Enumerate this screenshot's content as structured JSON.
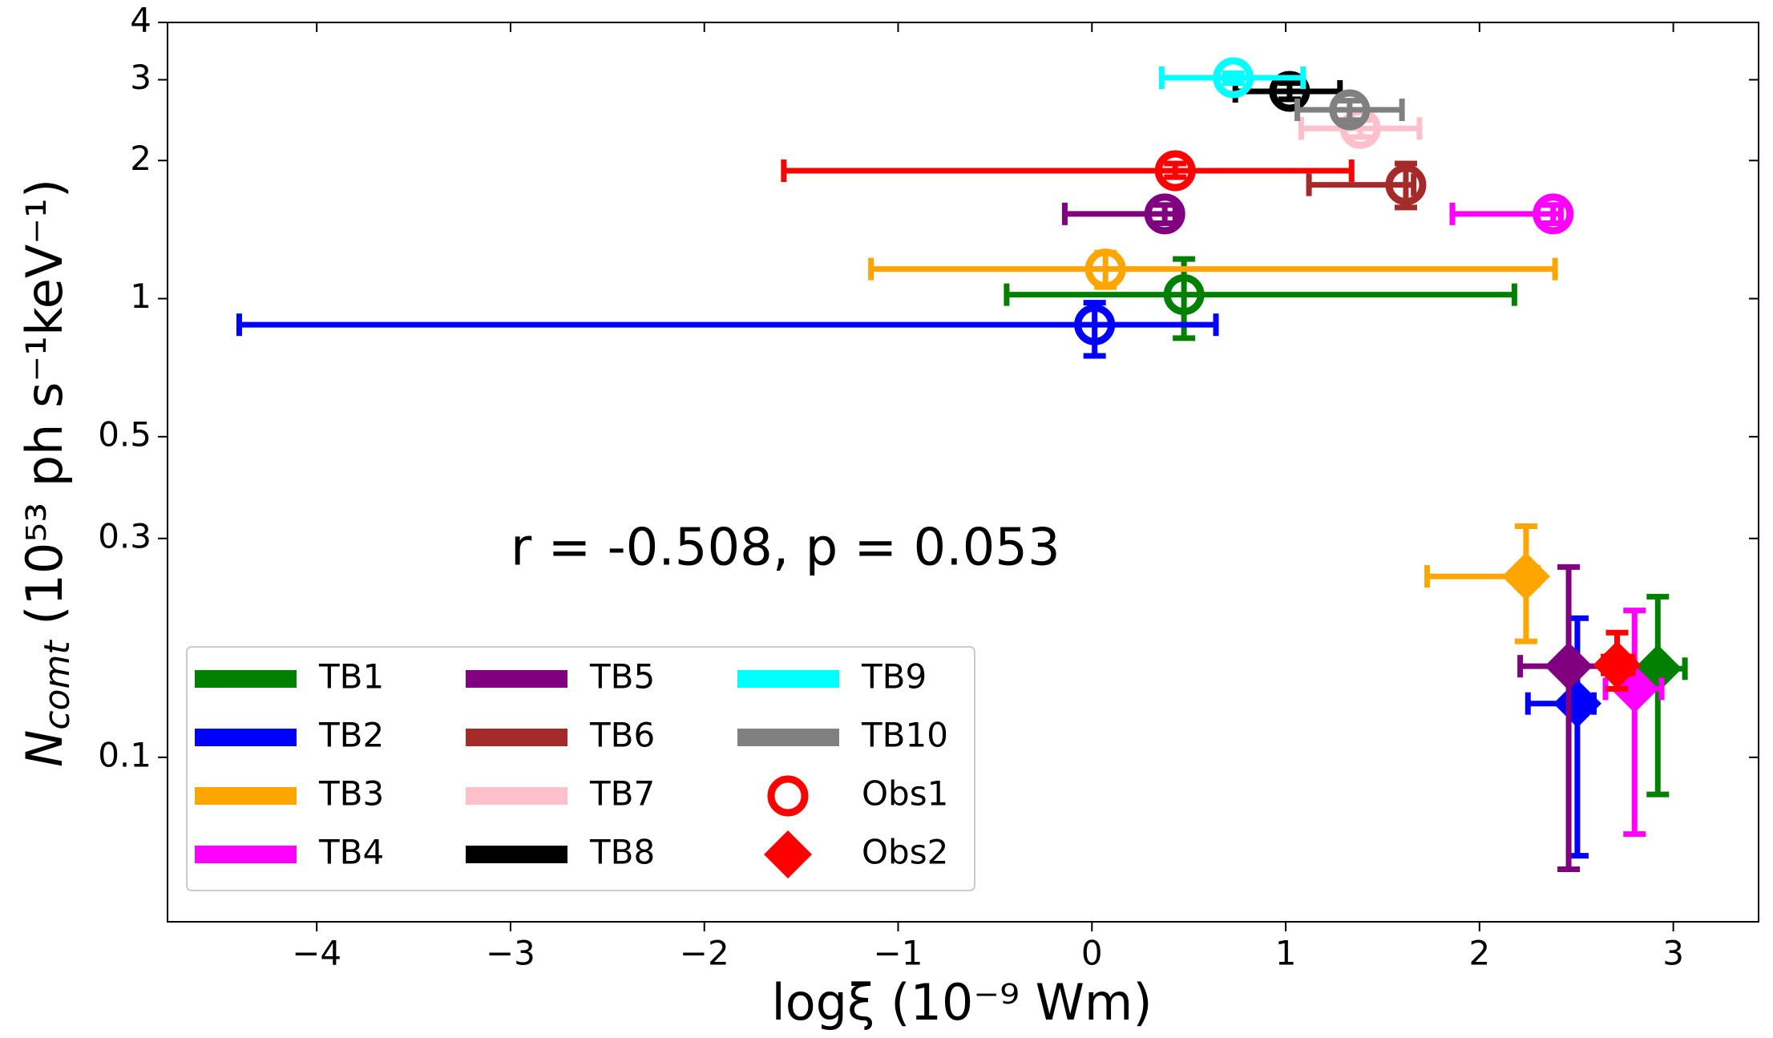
{
  "chart_data": {
    "type": "errorbar-scatter",
    "xlabel": "logξ (10⁻⁹ Wm)",
    "ylabel": {
      "main": "N",
      "sub": "comt",
      "rest": " (10⁵³ ph s⁻¹keV⁻¹)"
    },
    "annotation": {
      "text": "r = -0.508, p = 0.053",
      "color": "#ba55d3",
      "x": -3.0,
      "y": 0.282
    },
    "xlim": [
      -4.77,
      3.44
    ],
    "ylim": [
      0.0438,
      4
    ],
    "log_y": true,
    "xticks": [
      {
        "value": -4,
        "label": "−4"
      },
      {
        "value": -3,
        "label": "−3"
      },
      {
        "value": -2,
        "label": "−2"
      },
      {
        "value": -1,
        "label": "−1"
      },
      0,
      1,
      2,
      3
    ],
    "yticks": [
      0.1,
      0.3,
      0.5,
      1,
      2,
      3,
      4
    ],
    "legend": "lower left",
    "markers": [
      "circle",
      "diamond"
    ],
    "marker_labels": [
      "Obs1",
      "Obs2"
    ],
    "marker_color": "#ff0000",
    "series": [
      {
        "name": "TB1",
        "color": "#008000",
        "x": [
          0.475,
          2.92
        ],
        "y": [
          1.02,
          0.156
        ],
        "x_low": [
          -0.44,
          2.77
        ],
        "x_high": [
          2.18,
          3.06
        ],
        "y_low": [
          0.82,
          0.083
        ],
        "y_high": [
          1.22,
          0.224
        ]
      },
      {
        "name": "TB2",
        "color": "#0000ff",
        "x": [
          0.014,
          2.505
        ],
        "y": [
          0.877,
          0.131
        ],
        "x_low": [
          -4.4,
          2.25
        ],
        "x_high": [
          0.64,
          2.59
        ],
        "y_low": [
          0.75,
          0.061
        ],
        "y_high": [
          0.98,
          0.201
        ]
      },
      {
        "name": "TB3",
        "color": "#ffa500",
        "x": [
          0.07,
          2.24
        ],
        "y": [
          1.16,
          0.248
        ],
        "x_low": [
          -1.14,
          1.73
        ],
        "x_high": [
          2.39,
          2.3
        ],
        "y_low": [
          1.06,
          0.179
        ],
        "y_high": [
          1.26,
          0.319
        ]
      },
      {
        "name": "TB4",
        "color": "#ff00ff",
        "x": [
          2.38,
          2.8
        ],
        "y": [
          1.53,
          0.141
        ],
        "x_low": [
          1.86,
          2.65
        ],
        "x_high": [
          2.42,
          2.94
        ],
        "y_low": [
          1.46,
          0.068
        ],
        "y_high": [
          1.6,
          0.209
        ]
      },
      {
        "name": "TB5",
        "color": "#800080",
        "x": [
          0.376,
          2.46
        ],
        "y": [
          1.53,
          0.158
        ],
        "x_low": [
          -0.14,
          2.21
        ],
        "x_high": [
          0.43,
          2.71
        ],
        "y_low": [
          1.46,
          0.057
        ],
        "y_high": [
          1.6,
          0.26
        ]
      },
      {
        "name": "TB6",
        "color": "#a52a2a",
        "x": [
          1.62,
          null
        ],
        "y": [
          1.77,
          null
        ],
        "x_low": [
          1.12,
          null
        ],
        "x_high": [
          1.66,
          null
        ],
        "y_low": [
          1.58,
          null
        ],
        "y_high": [
          1.97,
          null
        ]
      },
      {
        "name": "TB7",
        "color": "#ffc0cb",
        "x": [
          1.385,
          null
        ],
        "y": [
          2.35,
          null
        ],
        "x_low": [
          1.08,
          null
        ],
        "x_high": [
          1.69,
          null
        ],
        "y_low": [
          2.25,
          null
        ],
        "y_high": [
          2.45,
          null
        ]
      },
      {
        "name": "TB8",
        "color": "#000000",
        "x": [
          1.02,
          null
        ],
        "y": [
          2.83,
          null
        ],
        "x_low": [
          0.74,
          null
        ],
        "x_high": [
          1.28,
          null
        ],
        "y_low": [
          2.72,
          null
        ],
        "y_high": [
          2.95,
          null
        ]
      },
      {
        "name": "TB9",
        "color": "#00ffff",
        "x": [
          0.73,
          null
        ],
        "y": [
          3.03,
          null
        ],
        "x_low": [
          0.36,
          null
        ],
        "x_high": [
          1.09,
          null
        ],
        "y_low": [
          2.95,
          null
        ],
        "y_high": [
          3.1,
          null
        ]
      },
      {
        "name": "TB10",
        "color": "#808080",
        "x": [
          1.33,
          null
        ],
        "y": [
          2.58,
          null
        ],
        "x_low": [
          1.06,
          null
        ],
        "x_high": [
          1.6,
          null
        ],
        "y_low": [
          2.45,
          null
        ],
        "y_high": [
          2.7,
          null
        ]
      },
      {
        "color": "#ff0000",
        "x": [
          0.43,
          2.71
        ],
        "y": [
          1.9,
          0.159
        ],
        "x_low": [
          -1.59,
          2.64
        ],
        "x_high": [
          1.34,
          2.79
        ],
        "y_low": [
          1.84,
          0.141
        ],
        "y_high": [
          1.97,
          0.187
        ]
      }
    ]
  }
}
